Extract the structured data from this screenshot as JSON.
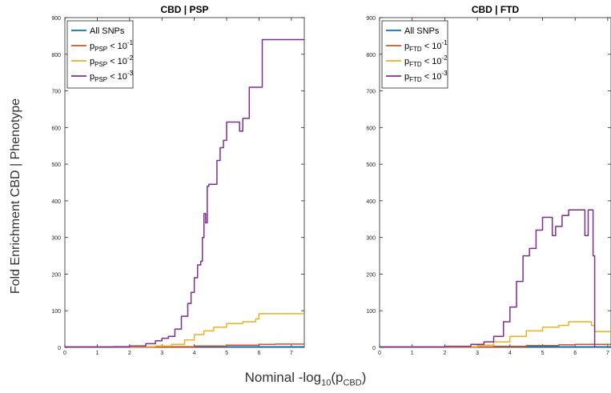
{
  "chart_data": [
    {
      "type": "line",
      "title": "CBD | PSP",
      "xlim": [
        0,
        7.4
      ],
      "ylim": [
        0,
        900
      ],
      "xticks": [
        "0",
        "1",
        "2",
        "3",
        "4",
        "5",
        "6",
        "7"
      ],
      "yticks": [
        "0",
        "100",
        "200",
        "300",
        "400",
        "500",
        "600",
        "700",
        "800",
        "900"
      ],
      "legend": {
        "position": "top-left",
        "entries": [
          {
            "text": "All SNPs",
            "sub": "",
            "sup": ""
          },
          {
            "text": "p",
            "sub": "PSP",
            "cmp": " < 10",
            "sup": "-1"
          },
          {
            "text": "p",
            "sub": "PSP",
            "cmp": " < 10",
            "sup": "-2"
          },
          {
            "text": "p",
            "sub": "PSP",
            "cmp": " < 10",
            "sup": "-3"
          }
        ]
      },
      "series": [
        {
          "name": "All SNPs",
          "color": "#0072BD",
          "x": [
            0,
            7.4
          ],
          "y": [
            1,
            1
          ]
        },
        {
          "name": "pPSP < 10^-1",
          "color": "#D95319",
          "x": [
            0,
            1.5,
            3.0,
            4.0,
            5.0,
            6.0,
            6.5,
            7.4
          ],
          "y": [
            1,
            1.3,
            2,
            4,
            6,
            8,
            9,
            9
          ]
        },
        {
          "name": "pPSP < 10^-2",
          "color": "#EDB120",
          "x": [
            0,
            2.0,
            2.8,
            3.3,
            3.7,
            4.0,
            4.3,
            4.6,
            5.0,
            5.5,
            5.9,
            6.0,
            6.5,
            7.4
          ],
          "y": [
            1,
            2,
            4,
            8,
            20,
            35,
            45,
            55,
            65,
            70,
            78,
            92,
            92,
            92
          ]
        },
        {
          "name": "pPSP < 10^-3",
          "color": "#7E2F8E",
          "x": [
            0,
            1.5,
            2.0,
            2.5,
            2.8,
            3.0,
            3.2,
            3.4,
            3.6,
            3.8,
            3.9,
            4.0,
            4.1,
            4.2,
            4.25,
            4.3,
            4.35,
            4.4,
            4.45,
            4.5,
            4.7,
            4.8,
            4.9,
            5.0,
            5.3,
            5.4,
            5.5,
            5.6,
            5.7,
            6.0,
            6.1,
            7.4
          ],
          "y": [
            1,
            2,
            4,
            10,
            18,
            25,
            30,
            50,
            85,
            120,
            150,
            190,
            225,
            235,
            300,
            365,
            340,
            440,
            445,
            445,
            510,
            545,
            565,
            615,
            615,
            590,
            625,
            625,
            710,
            710,
            840,
            840
          ]
        }
      ]
    },
    {
      "type": "line",
      "title": "CBD | FTD",
      "xlim": [
        0,
        7.1
      ],
      "ylim": [
        0,
        900
      ],
      "xticks": [
        "0",
        "1",
        "2",
        "3",
        "4",
        "5",
        "6",
        "7"
      ],
      "yticks": [
        "0",
        "100",
        "200",
        "300",
        "400",
        "500",
        "600",
        "700",
        "800",
        "900"
      ],
      "legend": {
        "position": "top-left",
        "entries": [
          {
            "text": "All SNPs",
            "sub": "",
            "sup": ""
          },
          {
            "text": "p",
            "sub": "FTD",
            "cmp": " < 10",
            "sup": "-1"
          },
          {
            "text": "p",
            "sub": "FTD",
            "cmp": " < 10",
            "sup": "-2"
          },
          {
            "text": "p",
            "sub": "FTD",
            "cmp": " < 10",
            "sup": "-3"
          }
        ]
      },
      "series": [
        {
          "name": "All SNPs",
          "color": "#0072BD",
          "x": [
            0,
            7.1
          ],
          "y": [
            1,
            1
          ]
        },
        {
          "name": "pFTD < 10^-1",
          "color": "#D95319",
          "x": [
            0,
            2.0,
            3.5,
            4.5,
            5.5,
            6.0,
            6.5,
            7.1
          ],
          "y": [
            1,
            1.5,
            3,
            5,
            7,
            8,
            8,
            8
          ]
        },
        {
          "name": "pFTD < 10^-2",
          "color": "#EDB120",
          "x": [
            0,
            2.0,
            3.0,
            3.5,
            4.0,
            4.5,
            5.0,
            5.5,
            5.8,
            6.3,
            6.5,
            6.6,
            7.1
          ],
          "y": [
            1,
            2,
            6,
            15,
            30,
            45,
            55,
            60,
            70,
            70,
            60,
            43,
            43
          ]
        },
        {
          "name": "pFTD < 10^-3",
          "color": "#7E2F8E",
          "x": [
            0,
            2.0,
            2.8,
            3.2,
            3.5,
            3.8,
            4.0,
            4.2,
            4.4,
            4.6,
            4.8,
            5.0,
            5.3,
            5.4,
            5.6,
            5.8,
            6.2,
            6.3,
            6.4,
            6.5,
            6.55,
            6.6
          ],
          "y": [
            1,
            3,
            8,
            15,
            30,
            70,
            110,
            180,
            250,
            270,
            320,
            355,
            305,
            330,
            360,
            375,
            375,
            305,
            375,
            375,
            250,
            0
          ]
        }
      ]
    }
  ],
  "shared": {
    "ylabel": "Fold Enrichment CBD | Phenotype",
    "xlabel_pre": "Nominal -log",
    "xlabel_sub1": "10",
    "xlabel_mid": "(p",
    "xlabel_sub2": "CBD",
    "xlabel_post": ")"
  }
}
